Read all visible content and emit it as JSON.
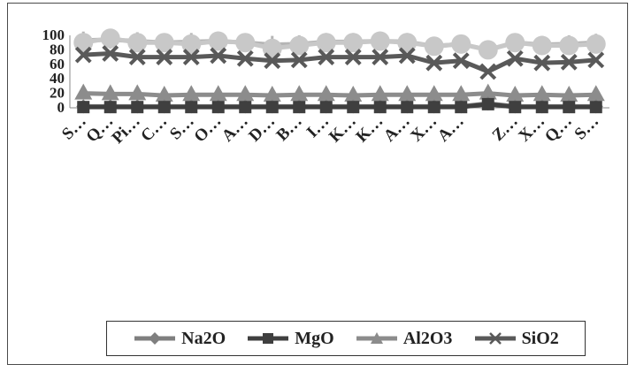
{
  "chart_data": {
    "type": "line",
    "title": "",
    "xlabel": "",
    "ylabel": "",
    "ylim": [
      0,
      100
    ],
    "yticks": [
      0,
      20,
      40,
      60,
      80,
      100
    ],
    "legend_position": "bottom",
    "categories": [
      "S…",
      "Q…",
      "Pi…",
      "C…",
      "S…",
      "O…",
      "A…",
      "D…",
      "B…",
      "I…",
      "K…",
      "K…",
      "A…",
      "X…",
      "A…",
      "",
      "Z…",
      "X…",
      "Q…",
      "S…"
    ],
    "series": [
      {
        "name": "Na2O",
        "color": "#7f7f7f",
        "marker": "diamond",
        "values": [
          2,
          2,
          2,
          2,
          2,
          2,
          2,
          2,
          2,
          2,
          2,
          2,
          2,
          2,
          2,
          6,
          2,
          2,
          2,
          2
        ]
      },
      {
        "name": "MgO",
        "color": "#3f3f3f",
        "marker": "square",
        "values": [
          1,
          1,
          1,
          1,
          1,
          1,
          1,
          1,
          1,
          1,
          1,
          1,
          1,
          1,
          1,
          5,
          1,
          1,
          1,
          1
        ]
      },
      {
        "name": "Al2O3",
        "color": "#8c8c8c",
        "marker": "triangle",
        "values": [
          20,
          19,
          19,
          17,
          18,
          18,
          18,
          17,
          18,
          18,
          17,
          18,
          18,
          18,
          18,
          20,
          17,
          18,
          17,
          18
        ]
      },
      {
        "name": "SiO2",
        "color": "#595959",
        "marker": "x",
        "values": [
          73,
          75,
          70,
          70,
          70,
          72,
          68,
          65,
          66,
          70,
          70,
          70,
          72,
          62,
          65,
          50,
          68,
          62,
          63,
          66
        ]
      }
    ],
    "other_series": [
      {
        "color": "#b5b5b5",
        "marker": "plus",
        "values": [
          93,
          94,
          92,
          90,
          91,
          92,
          90,
          87,
          88,
          91,
          91,
          92,
          91,
          85,
          88,
          80,
          90,
          87,
          88,
          90
        ]
      },
      {
        "color": "#c8c8c8",
        "marker": "circle",
        "values": [
          90,
          96,
          90,
          90,
          88,
          92,
          90,
          82,
          86,
          90,
          90,
          92,
          90,
          85,
          88,
          80,
          90,
          86,
          86,
          88
        ]
      }
    ]
  }
}
